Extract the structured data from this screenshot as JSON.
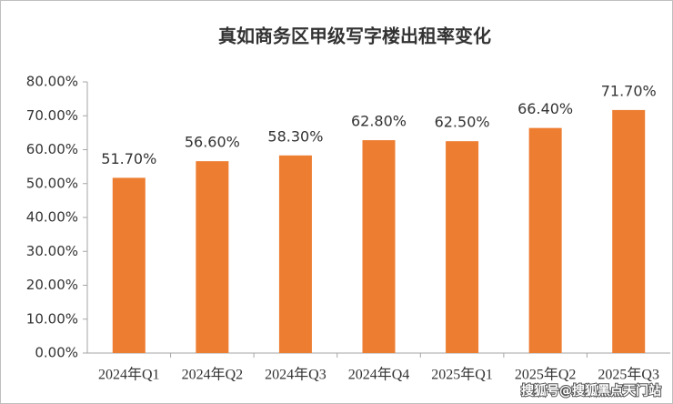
{
  "chart_data": {
    "type": "bar",
    "title": "真如商务区甲级写字楼出租率变化",
    "categories": [
      "2024年Q1",
      "2024年Q2",
      "2024年Q3",
      "2024年Q4",
      "2025年Q1",
      "2025年Q2",
      "2025年Q3"
    ],
    "values": [
      51.7,
      56.6,
      58.3,
      62.8,
      62.5,
      66.4,
      71.7
    ],
    "value_labels": [
      "51.70%",
      "56.60%",
      "58.30%",
      "62.80%",
      "62.50%",
      "66.40%",
      "71.70%"
    ],
    "color": "#ed7d31",
    "ylim": [
      0,
      80
    ],
    "yticks": [
      {
        "value": 0,
        "label": "0.00%"
      },
      {
        "value": 10,
        "label": "10.00%"
      },
      {
        "value": 20,
        "label": "20.00%"
      },
      {
        "value": 30,
        "label": "30.00%"
      },
      {
        "value": 40,
        "label": "40.00%"
      },
      {
        "value": 50,
        "label": "50.00%"
      },
      {
        "value": 60,
        "label": "60.00%"
      },
      {
        "value": 70,
        "label": "70.00%"
      },
      {
        "value": 80,
        "label": "80.00%"
      }
    ],
    "grid": false,
    "watermark": "搜狐号@搜狐黑点天门站"
  }
}
